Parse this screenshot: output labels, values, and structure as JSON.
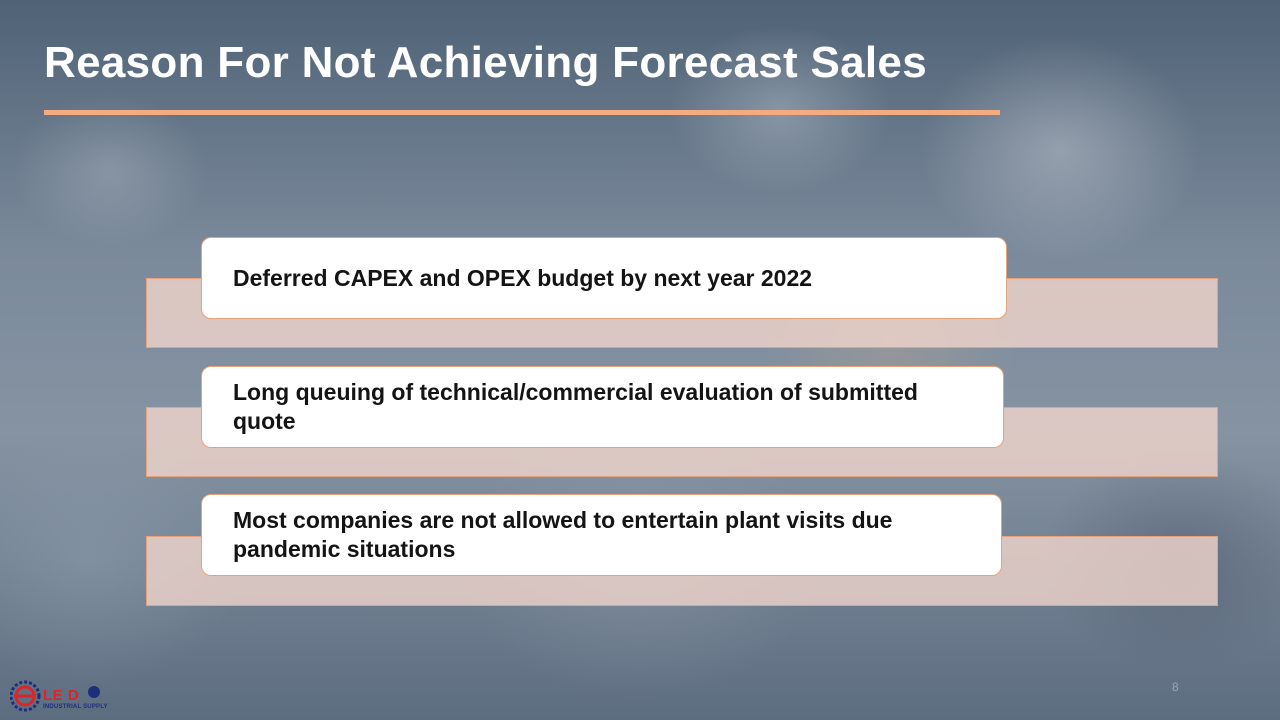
{
  "slide": {
    "title": "Reason For Not Achieving Forecast Sales",
    "page_number": "8"
  },
  "reasons": [
    {
      "text": "Deferred CAPEX and OPEX budget by next year 2022"
    },
    {
      "text": "Long queuing of  technical/commercial evaluation of submitted quote"
    },
    {
      "text": "Most companies are not allowed to entertain plant visits due pandemic situations"
    }
  ],
  "logo": {
    "wordmark": "LE D",
    "tagline": "INDUSTRIAL SUPPLY"
  },
  "colors": {
    "accent": "#f4ab7f",
    "band_fill": "#f4d7cd",
    "card_border": "#e6a27b",
    "title_text": "#ffffff",
    "body_text": "#141414"
  }
}
